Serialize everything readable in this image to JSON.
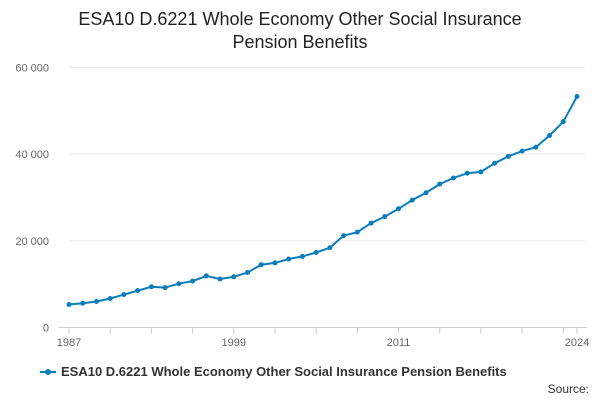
{
  "title_line1": "ESA10 D.6221 Whole Economy Other Social Insurance",
  "title_line2": "Pension Benefits",
  "source_label": "Source:",
  "chart_data": {
    "type": "line",
    "title": "ESA10 D.6221 Whole Economy Other Social Insurance Pension Benefits",
    "xlabel": "",
    "ylabel": "",
    "x_tick_labels": [
      "1987",
      "1999",
      "2011",
      "2024"
    ],
    "y_tick_labels": [
      "0",
      "20 000",
      "40 000",
      "60 000"
    ],
    "y_ticks": [
      0,
      20000,
      40000,
      60000
    ],
    "ylim": [
      0,
      60000
    ],
    "xlim": [
      1987,
      2024
    ],
    "grid": "horizontal",
    "legend_position": "bottom-left",
    "color": "#0b7dbb",
    "x": [
      1987,
      1988,
      1989,
      1990,
      1991,
      1992,
      1993,
      1994,
      1995,
      1996,
      1997,
      1998,
      1999,
      2000,
      2001,
      2002,
      2003,
      2004,
      2005,
      2006,
      2007,
      2008,
      2009,
      2010,
      2011,
      2012,
      2013,
      2014,
      2015,
      2016,
      2017,
      2018,
      2019,
      2020,
      2021,
      2022,
      2023,
      2024
    ],
    "series": [
      {
        "name": "ESA10 D.6221 Whole Economy Other Social Insurance Pension Benefits",
        "values": [
          5300,
          5600,
          6000,
          6700,
          7600,
          8500,
          9400,
          9200,
          10100,
          10700,
          11900,
          11200,
          11700,
          12700,
          14500,
          14900,
          15800,
          16400,
          17300,
          18400,
          21200,
          22000,
          24100,
          25600,
          27400,
          29400,
          31100,
          33100,
          34500,
          35600,
          35900,
          37900,
          39500,
          40700,
          41600,
          44300,
          47500,
          53300
        ]
      }
    ]
  }
}
